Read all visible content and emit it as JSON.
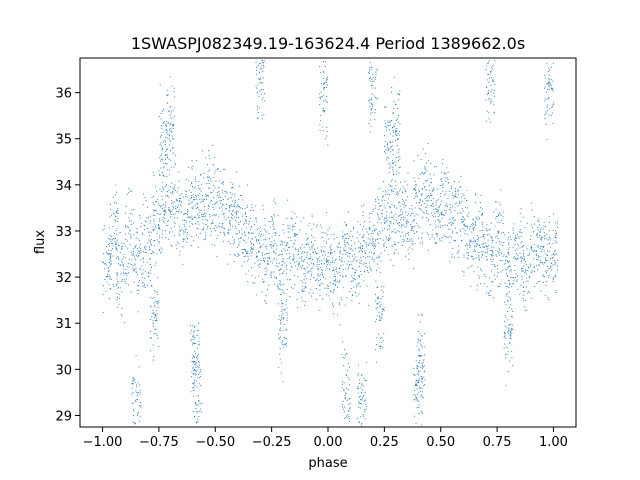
{
  "chart_data": {
    "type": "scatter",
    "title": "1SWASPJ082349.19-163624.4 Period 1389662.0s",
    "xlabel": "phase",
    "ylabel": "flux",
    "xlim": [
      -1.1,
      1.1
    ],
    "ylim": [
      28.75,
      36.75
    ],
    "xticks": [
      -1.0,
      -0.75,
      -0.5,
      -0.25,
      0.0,
      0.25,
      0.5,
      0.75,
      1.0
    ],
    "xtick_labels": [
      "−1.00",
      "−0.75",
      "−0.50",
      "−0.25",
      "0.00",
      "0.25",
      "0.50",
      "0.75",
      "1.00"
    ],
    "yticks": [
      29,
      30,
      31,
      32,
      33,
      34,
      35,
      36
    ],
    "ytick_labels": [
      "29",
      "30",
      "31",
      "32",
      "33",
      "34",
      "35",
      "36"
    ],
    "grid": false,
    "series_color": "#1f77b4",
    "points": [
      [
        -0.98,
        32.4
      ],
      [
        -0.95,
        32.9
      ],
      [
        -0.92,
        32.1
      ],
      [
        -0.88,
        32.8
      ],
      [
        -0.84,
        32.3
      ],
      [
        -0.8,
        32.7
      ],
      [
        -0.76,
        33.1
      ],
      [
        -0.72,
        33.4
      ],
      [
        -0.68,
        33.6
      ],
      [
        -0.64,
        33.2
      ],
      [
        -0.6,
        33.7
      ],
      [
        -0.56,
        33.5
      ],
      [
        -0.52,
        33.8
      ],
      [
        -0.48,
        33.6
      ],
      [
        -0.44,
        33.4
      ],
      [
        -0.4,
        33.1
      ],
      [
        -0.36,
        32.9
      ],
      [
        -0.32,
        32.6
      ],
      [
        -0.28,
        32.4
      ],
      [
        -0.24,
        32.7
      ],
      [
        -0.2,
        32.3
      ],
      [
        -0.16,
        32.6
      ],
      [
        -0.12,
        32.2
      ],
      [
        -0.08,
        32.5
      ],
      [
        -0.04,
        32.3
      ],
      [
        0.0,
        32.4
      ],
      [
        0.04,
        32.1
      ],
      [
        0.08,
        32.5
      ],
      [
        0.12,
        32.3
      ],
      [
        0.16,
        32.6
      ],
      [
        0.2,
        32.8
      ],
      [
        0.24,
        33.1
      ],
      [
        0.28,
        33.3
      ],
      [
        0.32,
        33.5
      ],
      [
        0.36,
        33.2
      ],
      [
        0.4,
        33.6
      ],
      [
        0.44,
        33.7
      ],
      [
        0.48,
        33.4
      ],
      [
        0.52,
        33.6
      ],
      [
        0.56,
        33.3
      ],
      [
        0.6,
        33.1
      ],
      [
        0.64,
        32.9
      ],
      [
        0.68,
        32.7
      ],
      [
        0.72,
        32.5
      ],
      [
        0.76,
        32.8
      ],
      [
        0.8,
        32.3
      ],
      [
        0.84,
        32.6
      ],
      [
        0.88,
        32.2
      ],
      [
        0.92,
        32.5
      ],
      [
        0.96,
        32.4
      ],
      [
        1.0,
        32.6
      ],
      [
        -0.58,
        29.7
      ],
      [
        -0.59,
        30.3
      ],
      [
        0.4,
        29.6
      ],
      [
        0.41,
        30.2
      ],
      [
        0.08,
        29.5
      ],
      [
        -0.3,
        36.3
      ],
      [
        0.2,
        36.1
      ],
      [
        0.72,
        36.2
      ],
      [
        -0.02,
        35.9
      ],
      [
        0.98,
        36.0
      ],
      [
        -0.7,
        35.3
      ],
      [
        -0.73,
        34.9
      ],
      [
        0.3,
        35.2
      ],
      [
        0.27,
        34.8
      ],
      [
        -0.77,
        31.2
      ],
      [
        0.23,
        31.2
      ],
      [
        0.8,
        30.8
      ],
      [
        -0.2,
        30.9
      ],
      [
        -0.85,
        29.4
      ],
      [
        0.15,
        29.3
      ]
    ]
  }
}
